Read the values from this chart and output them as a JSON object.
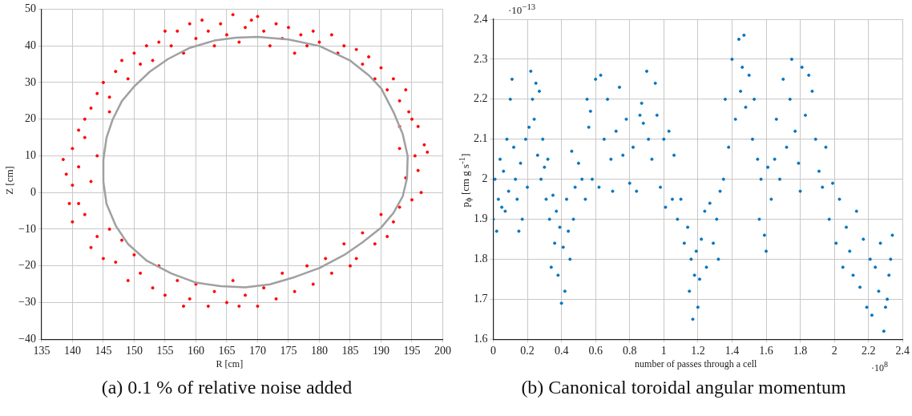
{
  "chart_data": [
    {
      "type": "scatter",
      "title": "(a) 0.1 % of relative noise added",
      "xlabel": "R [cm]",
      "ylabel": "Z [cm]",
      "xlim": [
        135,
        200
      ],
      "xticks": [
        135,
        140,
        145,
        150,
        155,
        160,
        165,
        170,
        175,
        180,
        185,
        190,
        195,
        200
      ],
      "ylim": [
        -40,
        50
      ],
      "yticks": [
        -40,
        -30,
        -20,
        -10,
        0,
        10,
        20,
        30,
        40,
        50
      ],
      "grid": true,
      "legend": false,
      "marker": "circle",
      "series": [
        {
          "type": "scatter",
          "color": "#ff0000",
          "x": [
            156,
            157,
            158,
            159,
            160,
            161,
            162,
            163,
            164,
            165,
            166,
            167,
            168,
            169,
            170,
            171,
            172,
            173,
            174,
            175,
            176,
            177,
            178,
            179,
            180,
            182,
            183,
            184,
            186,
            187,
            188,
            189,
            190,
            191,
            192,
            193,
            194,
            195,
            196,
            194.5,
            193,
            197,
            195.5,
            197.5,
            196,
            193,
            194,
            196.5,
            195,
            193,
            192,
            191,
            190,
            189,
            187,
            186,
            185,
            184,
            182,
            181,
            179,
            178,
            176,
            174,
            173,
            171,
            170,
            168,
            167,
            166,
            165,
            163,
            162,
            160,
            159,
            158,
            157,
            155,
            154,
            153,
            151,
            150,
            149,
            148,
            147,
            146,
            145,
            144,
            143,
            142,
            141,
            140,
            139.5,
            140,
            139,
            138.5,
            140,
            141,
            142,
            143,
            144,
            141,
            142,
            143,
            144,
            145,
            146,
            147,
            146,
            148,
            149,
            150,
            151,
            152,
            153,
            154,
            155
          ],
          "values": [
            40,
            44,
            38,
            46,
            42,
            47,
            44,
            40,
            46,
            43,
            48.5,
            41,
            45,
            47,
            48,
            44,
            40,
            46,
            42,
            45,
            38,
            43,
            40,
            44,
            41,
            43,
            38,
            40,
            39,
            35,
            37,
            31,
            34,
            28,
            31,
            25,
            28,
            20,
            18,
            22,
            18,
            13,
            10,
            11,
            6,
            12,
            4,
            0,
            -2,
            -4,
            -8,
            -12,
            -6,
            -14,
            -11,
            -18,
            -20,
            -14,
            -22,
            -18,
            -25,
            -20,
            -27,
            -22,
            -29,
            -26,
            -31,
            -28,
            -31,
            -24,
            -30,
            -27,
            -31,
            -25,
            -29,
            -31,
            -24,
            -28,
            -20,
            -26,
            -22,
            -17,
            -24,
            -13,
            -19,
            -10,
            -18,
            -12,
            -15,
            -6,
            -3,
            -8,
            -3,
            2,
            5,
            9,
            12,
            7,
            15,
            3,
            10,
            17,
            20,
            23,
            27,
            30,
            22,
            33,
            26,
            36,
            31,
            38,
            35,
            40,
            36,
            41,
            44
          ]
        }
      ]
    },
    {
      "type": "scatter",
      "title": "(b) Canonical toroidal angular momentum",
      "xlabel": "number of passes through a cell",
      "ylabel": "p$_{ϕ}$ [cm g s$^{-1}$]",
      "annotations": [
        "·10$^{−13}$",
        "·10$^{8}$"
      ],
      "xlim": [
        0,
        2.4
      ],
      "xticks": [
        0,
        0.2,
        0.4,
        0.6,
        0.8,
        1,
        1.2,
        1.4,
        1.6,
        1.8,
        2,
        2.2,
        2.4
      ],
      "ylim": [
        1.6,
        2.4
      ],
      "yticks": [
        1.6,
        1.7,
        1.8,
        1.9,
        2,
        2.1,
        2.2,
        2.3,
        2.4
      ],
      "grid": true,
      "legend": false,
      "marker": "circle",
      "series": [
        {
          "type": "scatter",
          "color": "#0072bd",
          "x": [
            0,
            0.01,
            0.02,
            0.03,
            0.04,
            0.05,
            0.06,
            0.07,
            0.08,
            0.09,
            0.1,
            0.11,
            0.12,
            0.13,
            0.14,
            0.15,
            0.16,
            0.17,
            0.19,
            0.2,
            0.21,
            0.22,
            0.23,
            0.24,
            0.25,
            0.26,
            0.27,
            0.28,
            0.29,
            0.3,
            0.31,
            0.32,
            0.33,
            0.34,
            0.35,
            0.36,
            0.37,
            0.38,
            0.39,
            0.4,
            0.41,
            0.42,
            0.43,
            0.44,
            0.45,
            0.46,
            0.47,
            0.48,
            0.5,
            0.52,
            0.54,
            0.55,
            0.56,
            0.57,
            0.58,
            0.6,
            0.62,
            0.63,
            0.65,
            0.67,
            0.69,
            0.7,
            0.72,
            0.74,
            0.76,
            0.78,
            0.8,
            0.82,
            0.84,
            0.86,
            0.87,
            0.88,
            0.9,
            0.91,
            0.93,
            0.95,
            0.96,
            0.98,
            1,
            1.01,
            1.03,
            1.05,
            1.06,
            1.08,
            1.1,
            1.12,
            1.14,
            1.15,
            1.16,
            1.17,
            1.18,
            1.19,
            1.2,
            1.21,
            1.22,
            1.24,
            1.25,
            1.27,
            1.29,
            1.31,
            1.32,
            1.33,
            1.35,
            1.36,
            1.38,
            1.4,
            1.42,
            1.44,
            1.45,
            1.46,
            1.47,
            1.48,
            1.5,
            1.52,
            1.53,
            1.55,
            1.56,
            1.57,
            1.59,
            1.6,
            1.61,
            1.63,
            1.65,
            1.66,
            1.68,
            1.7,
            1.72,
            1.74,
            1.75,
            1.77,
            1.79,
            1.8,
            1.81,
            1.83,
            1.85,
            1.87,
            1.89,
            1.91,
            1.93,
            1.95,
            1.97,
            1.99,
            2.01,
            2.03,
            2.05,
            2.07,
            2.09,
            2.11,
            2.13,
            2.15,
            2.17,
            2.19,
            2.21,
            2.22,
            2.24,
            2.26,
            2.27,
            2.29,
            2.31,
            2.33,
            2.34,
            2.3,
            2.32
          ],
          "values": [
            1.9,
            2.0,
            1.87,
            1.95,
            2.05,
            1.93,
            2.02,
            1.92,
            2.1,
            1.97,
            2.2,
            2.25,
            2.08,
            2.0,
            1.95,
            1.87,
            2.04,
            1.9,
            2.1,
            1.98,
            2.13,
            2.27,
            2.2,
            2.15,
            2.24,
            2.06,
            2.22,
            2.0,
            2.1,
            2.03,
            1.95,
            2.05,
            1.9,
            1.78,
            1.96,
            1.84,
            1.92,
            1.76,
            1.88,
            1.69,
            1.83,
            1.72,
            1.95,
            1.87,
            1.8,
            2.07,
            1.9,
            1.98,
            2.04,
            2.0,
            1.95,
            2.2,
            2.13,
            2.17,
            2.0,
            2.25,
            1.98,
            2.26,
            2.1,
            2.2,
            2.05,
            1.97,
            2.12,
            2.23,
            2.06,
            2.15,
            1.99,
            2.08,
            1.97,
            2.16,
            2.19,
            2.14,
            2.27,
            2.1,
            2.05,
            2.24,
            2.16,
            1.98,
            2.1,
            1.93,
            2.12,
            1.95,
            2.06,
            1.9,
            1.95,
            1.84,
            1.88,
            1.72,
            1.8,
            1.65,
            1.76,
            1.82,
            1.68,
            1.75,
            1.85,
            1.92,
            1.78,
            1.94,
            1.84,
            1.9,
            1.8,
            1.97,
            2.0,
            2.2,
            2.08,
            2.3,
            2.15,
            2.35,
            2.22,
            2.28,
            2.36,
            2.18,
            2.26,
            2.1,
            2.2,
            2.05,
            1.9,
            2.0,
            1.86,
            1.82,
            2.03,
            1.95,
            2.05,
            2.15,
            2.0,
            2.25,
            2.08,
            2.2,
            2.3,
            2.12,
            2.04,
            1.97,
            2.28,
            2.16,
            2.26,
            2.22,
            2.1,
            2.02,
            1.98,
            2.08,
            1.9,
            1.99,
            1.84,
            1.95,
            1.78,
            1.88,
            1.82,
            1.76,
            1.92,
            1.73,
            1.85,
            1.68,
            1.8,
            1.66,
            1.78,
            1.72,
            1.84,
            1.62,
            1.7,
            1.8,
            1.86,
            1.68,
            1.76
          ]
        }
      ]
    }
  ]
}
